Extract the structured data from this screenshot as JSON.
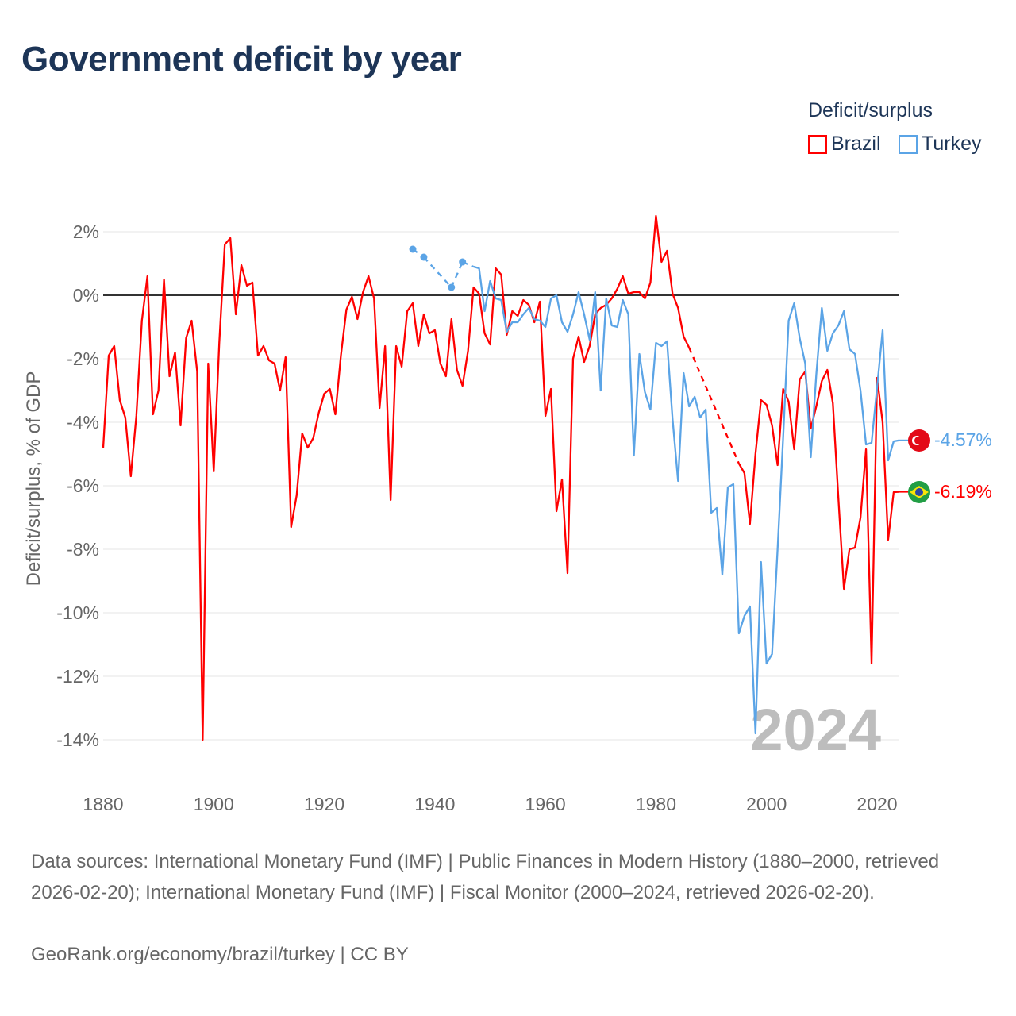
{
  "title": "Government deficit by year",
  "legend": {
    "title": "Deficit/surplus",
    "items": [
      "Brazil",
      "Turkey"
    ]
  },
  "end_labels": {
    "brazil": "-6.19%",
    "turkey": "-4.57%"
  },
  "footer": {
    "sources": "Data sources: International Monetary Fund (IMF) | Public Finances in Modern History (1880–2000, retrieved 2026-02-20); International Monetary Fund (IMF) | Fiscal Monitor (2000–2024, retrieved 2026-02-20).",
    "credit": "GeoRank.org/economy/brazil/turkey | CC BY"
  },
  "chart_data": {
    "type": "line",
    "title": "Government deficit by year",
    "xlabel": "",
    "ylabel": "Deficit/surplus, % of GDP",
    "xlim": [
      1880,
      2024
    ],
    "ylim": [
      -14,
      2.5
    ],
    "x_ticks": [
      "1880",
      "1900",
      "1920",
      "1940",
      "1960",
      "1980",
      "2000",
      "2020"
    ],
    "y_ticks": [
      "2%",
      "0%",
      "-2%",
      "-4%",
      "-6%",
      "-8%",
      "-10%",
      "-12%",
      "-14%"
    ],
    "watermark": "2024",
    "series": [
      {
        "name": "Brazil",
        "color": "#ff0000",
        "points": [
          [
            1880,
            -4.8
          ],
          [
            1881,
            -1.9
          ],
          [
            1882,
            -1.6
          ],
          [
            1883,
            -3.3
          ],
          [
            1884,
            -3.85
          ],
          [
            1885,
            -5.7
          ],
          [
            1886,
            -3.8
          ],
          [
            1887,
            -0.8
          ],
          [
            1888,
            0.6
          ],
          [
            1889,
            -3.75
          ],
          [
            1890,
            -3.0
          ],
          [
            1891,
            0.5
          ],
          [
            1892,
            -2.55
          ],
          [
            1893,
            -1.8
          ],
          [
            1894,
            -4.1
          ],
          [
            1895,
            -1.35
          ],
          [
            1896,
            -0.8
          ],
          [
            1897,
            -2.4
          ],
          [
            1898,
            -14.0
          ],
          [
            1899,
            -2.15
          ],
          [
            1900,
            -5.55
          ],
          [
            1901,
            -1.5
          ],
          [
            1902,
            1.6
          ],
          [
            1903,
            1.8
          ],
          [
            1904,
            -0.6
          ],
          [
            1905,
            0.95
          ],
          [
            1906,
            0.3
          ],
          [
            1907,
            0.4
          ],
          [
            1908,
            -1.9
          ],
          [
            1909,
            -1.6
          ],
          [
            1910,
            -2.05
          ],
          [
            1911,
            -2.15
          ],
          [
            1912,
            -3.0
          ],
          [
            1913,
            -1.95
          ],
          [
            1914,
            -7.3
          ],
          [
            1915,
            -6.3
          ],
          [
            1916,
            -4.35
          ],
          [
            1917,
            -4.8
          ],
          [
            1918,
            -4.5
          ],
          [
            1919,
            -3.7
          ],
          [
            1920,
            -3.1
          ],
          [
            1921,
            -2.95
          ],
          [
            1922,
            -3.75
          ],
          [
            1923,
            -1.9
          ],
          [
            1924,
            -0.45
          ],
          [
            1925,
            -0.05
          ],
          [
            1926,
            -0.75
          ],
          [
            1927,
            0.1
          ],
          [
            1928,
            0.6
          ],
          [
            1929,
            -0.1
          ],
          [
            1930,
            -3.55
          ],
          [
            1931,
            -1.6
          ],
          [
            1932,
            -6.45
          ],
          [
            1933,
            -1.6
          ],
          [
            1934,
            -2.25
          ],
          [
            1935,
            -0.5
          ],
          [
            1936,
            -0.25
          ],
          [
            1937,
            -1.6
          ],
          [
            1938,
            -0.6
          ],
          [
            1939,
            -1.2
          ],
          [
            1940,
            -1.1
          ],
          [
            1941,
            -2.15
          ],
          [
            1942,
            -2.55
          ],
          [
            1943,
            -0.75
          ],
          [
            1944,
            -2.35
          ],
          [
            1945,
            -2.85
          ],
          [
            1946,
            -1.75
          ],
          [
            1947,
            0.25
          ],
          [
            1948,
            0.05
          ],
          [
            1949,
            -1.2
          ],
          [
            1950,
            -1.55
          ],
          [
            1951,
            0.85
          ],
          [
            1952,
            0.65
          ],
          [
            1953,
            -1.25
          ],
          [
            1954,
            -0.5
          ],
          [
            1955,
            -0.65
          ],
          [
            1956,
            -0.15
          ],
          [
            1957,
            -0.3
          ],
          [
            1958,
            -0.85
          ],
          [
            1959,
            -0.2
          ],
          [
            1960,
            -3.8
          ],
          [
            1961,
            -2.95
          ],
          [
            1962,
            -6.8
          ],
          [
            1963,
            -5.8
          ],
          [
            1964,
            -8.75
          ],
          [
            1965,
            -2.0
          ],
          [
            1966,
            -1.3
          ],
          [
            1967,
            -2.1
          ],
          [
            1968,
            -1.6
          ],
          [
            1969,
            -0.6
          ],
          [
            1970,
            -0.4
          ],
          [
            1971,
            -0.3
          ],
          [
            1972,
            -0.1
          ],
          [
            1973,
            0.2
          ],
          [
            1974,
            0.6
          ],
          [
            1975,
            0.05
          ],
          [
            1976,
            0.1
          ],
          [
            1977,
            0.1
          ],
          [
            1978,
            -0.1
          ],
          [
            1979,
            0.4
          ],
          [
            1980,
            2.5
          ],
          [
            1981,
            1.05
          ],
          [
            1982,
            1.4
          ],
          [
            1983,
            0.05
          ],
          [
            1984,
            -0.4
          ],
          [
            1985,
            -1.3
          ],
          [
            1986,
            -1.65
          ],
          [
            1995,
            -5.3
          ],
          [
            1996,
            -5.6
          ],
          [
            1997,
            -7.2
          ],
          [
            1998,
            -5.0
          ],
          [
            1999,
            -3.3
          ],
          [
            2000,
            -3.45
          ],
          [
            2001,
            -4.1
          ],
          [
            2002,
            -5.35
          ],
          [
            2003,
            -2.95
          ],
          [
            2004,
            -3.35
          ],
          [
            2005,
            -4.85
          ],
          [
            2006,
            -2.65
          ],
          [
            2007,
            -2.4
          ],
          [
            2008,
            -4.2
          ],
          [
            2009,
            -3.5
          ],
          [
            2010,
            -2.7
          ],
          [
            2011,
            -2.35
          ],
          [
            2012,
            -3.4
          ],
          [
            2013,
            -6.4
          ],
          [
            2014,
            -9.25
          ],
          [
            2015,
            -8.0
          ],
          [
            2016,
            -7.95
          ],
          [
            2017,
            -7.0
          ],
          [
            2018,
            -4.85
          ],
          [
            2019,
            -11.6
          ],
          [
            2020,
            -2.6
          ],
          [
            2021,
            -4.0
          ],
          [
            2022,
            -7.7
          ],
          [
            2023,
            -6.2
          ],
          [
            2024,
            -6.19
          ]
        ]
      },
      {
        "name": "Turkey",
        "color": "#5ba4e6",
        "points": [
          [
            1936,
            1.45
          ],
          [
            1938,
            1.2
          ],
          [
            1943,
            0.25
          ],
          [
            1945,
            1.05
          ],
          [
            1947,
            0.9
          ],
          [
            1948,
            0.85
          ],
          [
            1949,
            -0.5
          ],
          [
            1950,
            0.45
          ],
          [
            1951,
            -0.1
          ],
          [
            1952,
            -0.15
          ],
          [
            1953,
            -1.15
          ],
          [
            1954,
            -0.85
          ],
          [
            1955,
            -0.85
          ],
          [
            1956,
            -0.6
          ],
          [
            1957,
            -0.4
          ],
          [
            1958,
            -0.75
          ],
          [
            1959,
            -0.8
          ],
          [
            1960,
            -1.0
          ],
          [
            1961,
            -0.1
          ],
          [
            1962,
            0.0
          ],
          [
            1963,
            -0.85
          ],
          [
            1964,
            -1.15
          ],
          [
            1965,
            -0.6
          ],
          [
            1966,
            0.1
          ],
          [
            1967,
            -0.6
          ],
          [
            1968,
            -1.4
          ],
          [
            1969,
            0.1
          ],
          [
            1970,
            -3.0
          ],
          [
            1971,
            -0.1
          ],
          [
            1972,
            -0.95
          ],
          [
            1973,
            -1.0
          ],
          [
            1974,
            -0.15
          ],
          [
            1975,
            -0.6
          ],
          [
            1976,
            -5.05
          ],
          [
            1977,
            -1.85
          ],
          [
            1978,
            -3.05
          ],
          [
            1979,
            -3.6
          ],
          [
            1980,
            -1.5
          ],
          [
            1981,
            -1.6
          ],
          [
            1982,
            -1.45
          ],
          [
            1983,
            -3.9
          ],
          [
            1984,
            -5.85
          ],
          [
            1985,
            -2.45
          ],
          [
            1986,
            -3.5
          ],
          [
            1987,
            -3.2
          ],
          [
            1988,
            -3.85
          ],
          [
            1989,
            -3.6
          ],
          [
            1990,
            -6.85
          ],
          [
            1991,
            -6.7
          ],
          [
            1992,
            -8.8
          ],
          [
            1993,
            -6.05
          ],
          [
            1994,
            -5.95
          ],
          [
            1995,
            -10.65
          ],
          [
            1996,
            -10.1
          ],
          [
            1997,
            -9.8
          ],
          [
            1998,
            -13.8
          ],
          [
            1999,
            -8.4
          ],
          [
            2000,
            -11.6
          ],
          [
            2001,
            -11.3
          ],
          [
            2002,
            -8.0
          ],
          [
            2003,
            -4.5
          ],
          [
            2004,
            -0.8
          ],
          [
            2005,
            -0.25
          ],
          [
            2006,
            -1.35
          ],
          [
            2007,
            -2.15
          ],
          [
            2008,
            -5.1
          ],
          [
            2009,
            -2.5
          ],
          [
            2010,
            -0.4
          ],
          [
            2011,
            -1.75
          ],
          [
            2012,
            -1.2
          ],
          [
            2013,
            -0.95
          ],
          [
            2014,
            -0.5
          ],
          [
            2015,
            -1.7
          ],
          [
            2016,
            -1.85
          ],
          [
            2017,
            -3.0
          ],
          [
            2018,
            -4.7
          ],
          [
            2019,
            -4.65
          ],
          [
            2020,
            -2.9
          ],
          [
            2021,
            -1.1
          ],
          [
            2022,
            -5.2
          ],
          [
            2023,
            -4.6
          ],
          [
            2024,
            -4.57
          ]
        ]
      }
    ]
  }
}
